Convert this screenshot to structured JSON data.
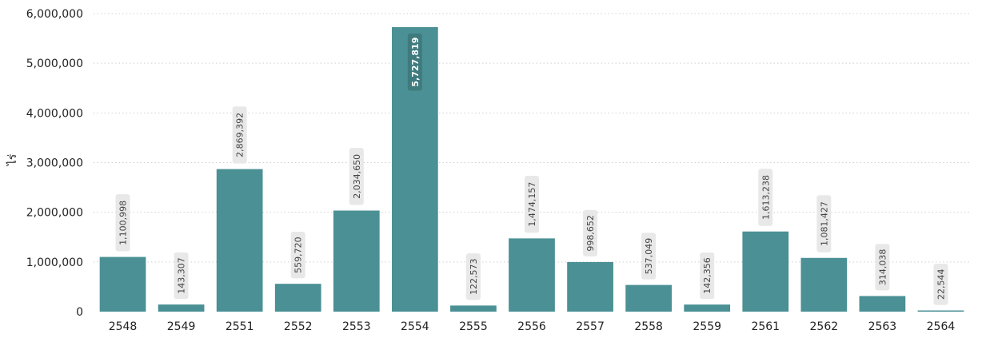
{
  "chart_data": {
    "type": "bar",
    "ylabel": "ไร่",
    "categories": [
      "2548",
      "2549",
      "2551",
      "2552",
      "2553",
      "2554",
      "2555",
      "2556",
      "2557",
      "2558",
      "2559",
      "2561",
      "2562",
      "2563",
      "2564"
    ],
    "values": [
      1100998,
      143307,
      2869392,
      559720,
      2034650,
      5727819,
      122573,
      1474157,
      998652,
      537049,
      142356,
      1613238,
      1081427,
      314038,
      22544
    ],
    "data_labels": [
      "1,100,998",
      "143,307",
      "2,869,392",
      "559,720",
      "2,034,650",
      "5,727,819",
      "122,573",
      "1,474,157",
      "998,652",
      "537,049",
      "142,356",
      "1,613,238",
      "1,081,427",
      "314,038",
      "22,544"
    ],
    "y_ticks": [
      0,
      1000000,
      2000000,
      3000000,
      4000000,
      5000000,
      6000000
    ],
    "y_tick_labels": [
      "0",
      "1,000,000",
      "2,000,000",
      "3,000,000",
      "4,000,000",
      "5,000,000",
      "6,000,000"
    ],
    "ylim": [
      0,
      6000000
    ],
    "grid": "horizontal dotted",
    "colors": {
      "bar": "#4a9094",
      "grid": "#d0d0d0",
      "label_bg": "#e8e8e8",
      "label_bg_inside": "#3f7b7e"
    }
  }
}
